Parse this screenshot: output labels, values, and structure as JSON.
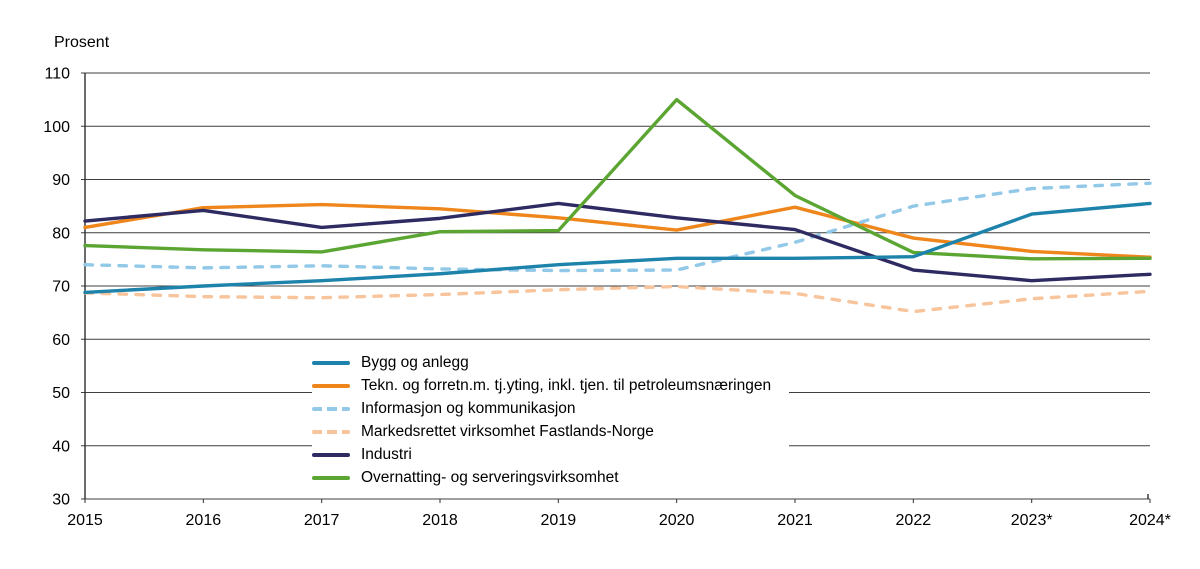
{
  "chart_data": {
    "type": "line",
    "ylabel": "Prosent",
    "x_labels": [
      "2015",
      "2016",
      "2017",
      "2018",
      "2019",
      "2020",
      "2021",
      "2022",
      "2023*",
      "2024*"
    ],
    "ylim": [
      30,
      110
    ],
    "yticks": [
      110,
      100,
      90,
      80,
      70,
      60,
      50,
      40,
      30
    ],
    "grid": "horizontal",
    "legend_position": "inside-bottom-left",
    "series": [
      {
        "name": "Bygg og anlegg",
        "color": "#1d83ab",
        "style": "solid",
        "values": [
          68.8,
          70,
          71,
          72.3,
          74,
          75.2,
          75.2,
          75.5,
          83.5,
          85.5
        ]
      },
      {
        "name": "Tekn. og forretn.m. tj.yting, inkl. tjen. til petroleumsnæringen",
        "color": "#ef861b",
        "style": "solid",
        "values": [
          81,
          84.7,
          85.3,
          84.5,
          82.8,
          80.5,
          84.8,
          79,
          76.5,
          75.4
        ]
      },
      {
        "name": "Informasjon og kommunikasjon",
        "color": "#92c8e8",
        "style": "dashed",
        "values": [
          74,
          73.4,
          73.8,
          73.2,
          72.9,
          73,
          78.2,
          85,
          88.3,
          89.3
        ]
      },
      {
        "name": "Markedsrettet virksomhet Fastlands-Norge",
        "color": "#f8c49c",
        "style": "dashed",
        "values": [
          68.7,
          68,
          67.8,
          68.4,
          69.3,
          69.9,
          68.6,
          65.2,
          67.6,
          69
        ]
      },
      {
        "name": "Industri",
        "color": "#2e2a62",
        "style": "solid",
        "values": [
          82.2,
          84.2,
          81,
          82.7,
          85.5,
          82.8,
          80.6,
          73,
          71,
          72.2
        ]
      },
      {
        "name": "Overnatting- og serveringsvirksomhet",
        "color": "#5ba532",
        "style": "solid",
        "values": [
          77.6,
          76.8,
          76.4,
          80.2,
          80.4,
          105,
          87,
          76.3,
          75.1,
          75.2
        ]
      }
    ]
  }
}
